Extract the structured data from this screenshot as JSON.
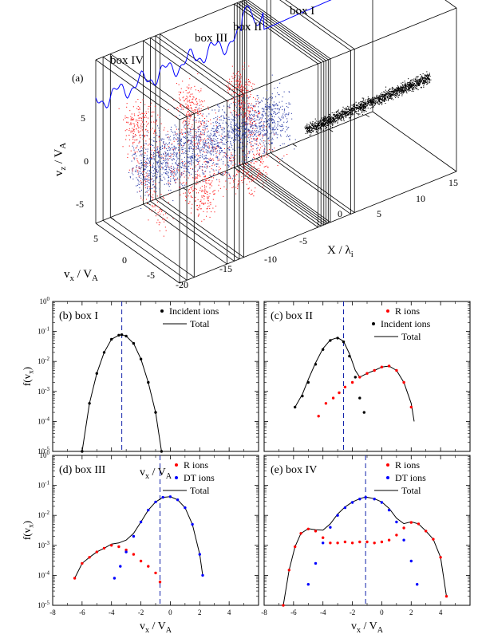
{
  "chart_data": [
    {
      "panel": "(a)",
      "type": "scatter",
      "title": "",
      "axes": {
        "x": {
          "label": "X / λ",
          "label_sub": "i",
          "ticks": [
            -20,
            -15,
            -10,
            -5,
            0,
            5,
            10,
            15
          ]
        },
        "y": {
          "label": "v / V",
          "label_sub_1": "x",
          "label_sub_2": "A",
          "ticks": [
            5,
            0,
            -5
          ]
        },
        "z": {
          "label": "v / V",
          "label_sub_1": "z",
          "label_sub_2": "A",
          "ticks": [
            5,
            0,
            -5
          ]
        }
      },
      "boxes": [
        "box I",
        "box II",
        "box III",
        "box IV"
      ],
      "series": [
        {
          "color": "#000000",
          "x_range": [
            -2,
            15
          ],
          "vz_center": 0,
          "desc_points": 0
        },
        {
          "color": "#ff0000",
          "x_range": [
            -22,
            -4
          ]
        },
        {
          "color": "#2233aa",
          "x_range": [
            -22,
            -2
          ]
        },
        {
          "color": "#0000ff",
          "trace": true
        }
      ]
    },
    {
      "panel": "(b)",
      "type": "line",
      "title": "box I",
      "xlabel": "v / V",
      "ylabel": "f(v )",
      "xlim": [
        -8,
        6
      ],
      "ylog": true,
      "ylim_exp": [
        -5,
        0
      ],
      "dashed_line_x": -3.3,
      "legend": [
        "Incident ions",
        "Total"
      ],
      "series": [
        {
          "name": "Incident ions",
          "color": "#000000",
          "marker": "dot",
          "x": [
            -6.0,
            -5.5,
            -5.0,
            -4.5,
            -4.0,
            -3.5,
            -3.3,
            -3.0,
            -2.5,
            -2.0,
            -1.5,
            -1.0,
            -0.6
          ],
          "y": [
            1e-05,
            0.0004,
            0.004,
            0.02,
            0.055,
            0.075,
            0.078,
            0.07,
            0.04,
            0.012,
            0.002,
            0.0002,
            1e-05
          ]
        },
        {
          "name": "Total",
          "color": "#000000",
          "marker": "line",
          "x": [
            -6.0,
            -5.5,
            -5.0,
            -4.5,
            -4.0,
            -3.5,
            -3.3,
            -3.0,
            -2.5,
            -2.0,
            -1.5,
            -1.0,
            -0.6
          ],
          "y": [
            1e-05,
            0.0004,
            0.004,
            0.02,
            0.055,
            0.075,
            0.078,
            0.07,
            0.04,
            0.012,
            0.002,
            0.0002,
            1e-05
          ]
        }
      ]
    },
    {
      "panel": "(c)",
      "type": "line",
      "title": "box II",
      "xlim": [
        -8,
        6
      ],
      "ylog": true,
      "ylim_exp": [
        -5,
        0
      ],
      "dashed_line_x": -2.6,
      "legend": [
        "R ions",
        "Incident ions",
        "Total"
      ],
      "series": [
        {
          "name": "R ions",
          "color": "#ff0000",
          "marker": "dot",
          "x": [
            -4.3,
            -3.8,
            -3.3,
            -2.9,
            -2.5,
            -2.0,
            -1.5,
            -1.0,
            -0.5,
            0.0,
            0.5,
            1.0,
            1.5,
            2.0
          ],
          "y": [
            0.00015,
            0.0004,
            0.0006,
            0.0009,
            0.0014,
            0.002,
            0.003,
            0.004,
            0.005,
            0.0065,
            0.007,
            0.005,
            0.002,
            0.0003
          ]
        },
        {
          "name": "Incident ions",
          "color": "#000000",
          "marker": "dot",
          "x": [
            -5.9,
            -5.4,
            -5.0,
            -4.5,
            -4.0,
            -3.5,
            -3.0,
            -2.6,
            -2.2,
            -1.8,
            -1.5,
            -1.2
          ],
          "y": [
            0.0003,
            0.0007,
            0.002,
            0.008,
            0.025,
            0.05,
            0.06,
            0.045,
            0.015,
            0.003,
            0.0006,
            0.0002
          ]
        },
        {
          "name": "Total",
          "color": "#000000",
          "marker": "line",
          "x": [
            -5.9,
            -5.4,
            -5.0,
            -4.5,
            -4.0,
            -3.5,
            -3.0,
            -2.6,
            -2.2,
            -1.8,
            -1.5,
            -1.0,
            -0.5,
            0.0,
            0.5,
            1.0,
            1.5,
            2.0,
            2.2
          ],
          "y": [
            0.0003,
            0.0008,
            0.0025,
            0.009,
            0.027,
            0.052,
            0.062,
            0.047,
            0.018,
            0.005,
            0.003,
            0.004,
            0.005,
            0.0065,
            0.007,
            0.005,
            0.002,
            0.0004,
            0.0001
          ]
        }
      ]
    },
    {
      "panel": "(d)",
      "type": "line",
      "title": "box III",
      "xlabel": "v / V",
      "ylabel": "f(v )",
      "xlim": [
        -8,
        6
      ],
      "xticks": [
        -8,
        -6,
        -4,
        -2,
        0,
        2,
        4
      ],
      "ylog": true,
      "ylim_exp": [
        -5,
        0
      ],
      "dashed_line_x": -0.7,
      "legend": [
        "R ions",
        "DT ions",
        "Total"
      ],
      "series": [
        {
          "name": "R ions",
          "color": "#ff0000",
          "marker": "dot",
          "x": [
            -6.5,
            -6.0,
            -5.5,
            -5.0,
            -4.5,
            -4.0,
            -3.5,
            -3.0,
            -2.5,
            -2.0,
            -1.5,
            -1.0,
            -0.7
          ],
          "y": [
            8e-05,
            0.00025,
            0.0004,
            0.0006,
            0.0008,
            0.001,
            0.0009,
            0.0007,
            0.0005,
            0.0003,
            0.0002,
            0.00012,
            6e-05
          ]
        },
        {
          "name": "DT ions",
          "color": "#0000ff",
          "marker": "dot",
          "x": [
            -3.8,
            -3.4,
            -3.0,
            -2.5,
            -2.0,
            -1.5,
            -1.0,
            -0.5,
            0.0,
            0.5,
            1.0,
            1.5,
            2.0,
            2.2
          ],
          "y": [
            8e-05,
            0.0002,
            0.0006,
            0.002,
            0.006,
            0.015,
            0.028,
            0.04,
            0.042,
            0.033,
            0.018,
            0.005,
            0.0005,
            0.0001
          ]
        },
        {
          "name": "Total",
          "color": "#000000",
          "marker": "line",
          "x": [
            -6.5,
            -6.0,
            -5.5,
            -5.0,
            -4.5,
            -4.0,
            -3.5,
            -3.0,
            -2.5,
            -2.0,
            -1.5,
            -1.0,
            -0.5,
            0.0,
            0.5,
            1.0,
            1.5,
            2.0,
            2.2
          ],
          "y": [
            8e-05,
            0.00025,
            0.0004,
            0.0006,
            0.0008,
            0.0011,
            0.0012,
            0.0015,
            0.0025,
            0.006,
            0.015,
            0.028,
            0.04,
            0.042,
            0.033,
            0.018,
            0.005,
            0.0005,
            0.0001
          ]
        }
      ]
    },
    {
      "panel": "(e)",
      "type": "line",
      "title": "box IV",
      "xlabel": "v / V",
      "xlim": [
        -8,
        6
      ],
      "xticks": [
        -8,
        -6,
        -4,
        -2,
        0,
        2,
        4
      ],
      "ylog": true,
      "ylim_exp": [
        -5,
        0
      ],
      "dashed_line_x": -1.1,
      "legend": [
        "R ions",
        "DT ions",
        "Total"
      ],
      "series": [
        {
          "name": "R ions",
          "color": "#ff0000",
          "marker": "dot",
          "x": [
            -6.7,
            -6.3,
            -5.9,
            -5.5,
            -5.0,
            -4.5,
            -4.0,
            -3.5,
            -3.0,
            -2.5,
            -2.0,
            -1.5,
            -1.0,
            -0.5,
            0.0,
            0.5,
            1.0,
            1.5,
            2.0,
            2.5,
            3.0,
            3.5,
            4.0,
            4.4
          ],
          "y": [
            1e-05,
            0.00015,
            0.0009,
            0.0025,
            0.0035,
            0.003,
            0.0018,
            0.0012,
            0.0012,
            0.0013,
            0.0012,
            0.0013,
            0.0013,
            0.0012,
            0.0013,
            0.0015,
            0.0022,
            0.0038,
            0.0058,
            0.0052,
            0.003,
            0.0016,
            0.0004,
            2e-05
          ]
        },
        {
          "name": "DT ions",
          "color": "#0000ff",
          "marker": "dot",
          "x": [
            -5.0,
            -4.5,
            -4.0,
            -3.5,
            -3.0,
            -2.5,
            -2.0,
            -1.5,
            -1.1,
            -0.5,
            0.0,
            0.5,
            1.0,
            1.5,
            2.0,
            2.4
          ],
          "y": [
            5e-05,
            0.00025,
            0.0012,
            0.004,
            0.01,
            0.018,
            0.027,
            0.035,
            0.04,
            0.035,
            0.027,
            0.015,
            0.006,
            0.0015,
            0.0003,
            5e-05
          ]
        },
        {
          "name": "Total",
          "color": "#000000",
          "marker": "line",
          "x": [
            -6.7,
            -6.3,
            -5.9,
            -5.5,
            -5.0,
            -4.5,
            -4.0,
            -3.5,
            -3.0,
            -2.5,
            -2.0,
            -1.5,
            -1.1,
            -0.5,
            0.0,
            0.5,
            1.0,
            1.5,
            2.0,
            2.5,
            3.0,
            3.5,
            4.0,
            4.4
          ],
          "y": [
            1e-05,
            0.00015,
            0.0009,
            0.0025,
            0.0036,
            0.0033,
            0.0032,
            0.0052,
            0.011,
            0.019,
            0.028,
            0.036,
            0.041,
            0.036,
            0.028,
            0.017,
            0.008,
            0.0053,
            0.0061,
            0.0052,
            0.003,
            0.0016,
            0.0004,
            2e-05
          ]
        }
      ]
    }
  ]
}
